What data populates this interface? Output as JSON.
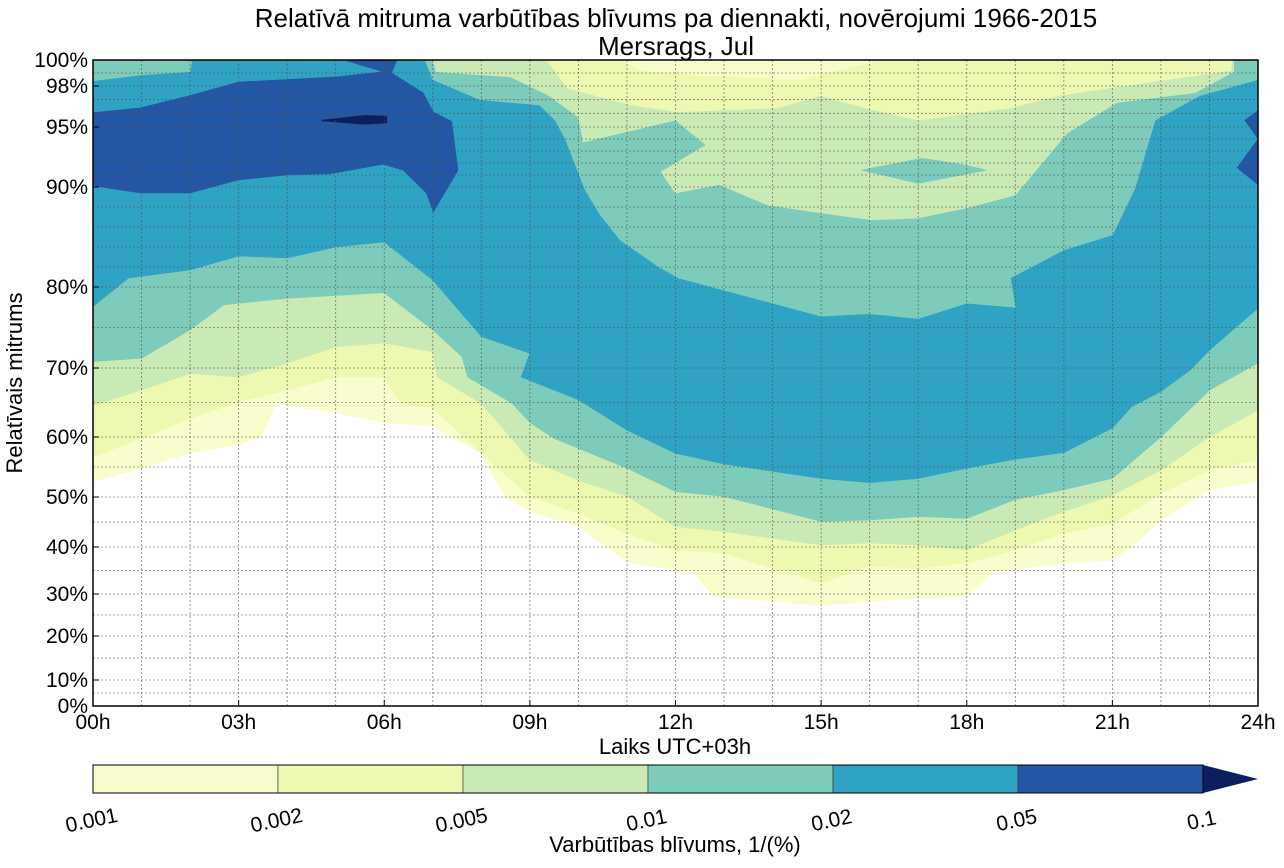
{
  "chart_data": {
    "type": "contourf",
    "title": "Relatīvā mitruma varbūtības blīvums pa diennakti, novērojumi 1966-2015",
    "subtitle": "Mersrags, Jul",
    "xlabel": "Laiks UTC+03h",
    "ylabel": "Relatīvais mitrums",
    "xlim": [
      0,
      24
    ],
    "ylim": [
      0,
      100
    ],
    "grid": true,
    "x_ticks": [
      {
        "value": 0,
        "label": "00h"
      },
      {
        "value": 3,
        "label": "03h"
      },
      {
        "value": 6,
        "label": "06h"
      },
      {
        "value": 9,
        "label": "09h"
      },
      {
        "value": 12,
        "label": "12h"
      },
      {
        "value": 15,
        "label": "15h"
      },
      {
        "value": 18,
        "label": "18h"
      },
      {
        "value": 21,
        "label": "21h"
      },
      {
        "value": 24,
        "label": "24h"
      }
    ],
    "x_minor_gridlines_every_hours": 1,
    "y_ticks": [
      {
        "value": 0,
        "label": "0%"
      },
      {
        "value": 10,
        "label": "10%"
      },
      {
        "value": 20,
        "label": "20%"
      },
      {
        "value": 30,
        "label": "30%"
      },
      {
        "value": 40,
        "label": "40%"
      },
      {
        "value": 50,
        "label": "50%"
      },
      {
        "value": 60,
        "label": "60%"
      },
      {
        "value": 70,
        "label": "70%"
      },
      {
        "value": 80,
        "label": "80%"
      },
      {
        "value": 90,
        "label": "90%"
      },
      {
        "value": 95,
        "label": "95%"
      },
      {
        "value": 98,
        "label": "98%"
      },
      {
        "value": 100,
        "label": "100%"
      }
    ],
    "y_minor_gridlines": [
      5,
      15,
      25,
      35,
      45,
      55,
      65,
      75,
      82,
      84,
      86,
      88,
      91,
      92,
      93,
      94,
      96,
      97,
      99
    ],
    "colorbar": {
      "label": "Varbūtības blīvums, 1/(%)",
      "levels": [
        0.001,
        0.002,
        0.005,
        0.01,
        0.02,
        0.05,
        0.1
      ],
      "tick_labels": [
        "0.001",
        "0.002",
        "0.005",
        "0.01",
        "0.02",
        "0.05",
        "0.1"
      ],
      "colors": [
        "#f9fdcb",
        "#edf8b1",
        "#c9eab5",
        "#7dcbba",
        "#2ea3c3",
        "#2357a6"
      ],
      "extend": "max",
      "extend_color": "#0c1f5c"
    },
    "regions": [
      {
        "level": 0.001,
        "points": [
          [
            0,
            100
          ],
          [
            0,
            52.6
          ],
          [
            1,
            54.8
          ],
          [
            2,
            57.3
          ],
          [
            3,
            58.7
          ],
          [
            3.45,
            60
          ],
          [
            3.77,
            64.9
          ],
          [
            5,
            63.5
          ],
          [
            6,
            62.1
          ],
          [
            7,
            61.5
          ],
          [
            8,
            57.3
          ],
          [
            8.47,
            50.1
          ],
          [
            9,
            47.1
          ],
          [
            10,
            44.1
          ],
          [
            11,
            36.9
          ],
          [
            12,
            35.1
          ],
          [
            12.38,
            34.4
          ],
          [
            12.79,
            29.4
          ],
          [
            15,
            27.3
          ],
          [
            17,
            29
          ],
          [
            18,
            29.4
          ],
          [
            18.55,
            34.7
          ],
          [
            20,
            36.6
          ],
          [
            21,
            37.2
          ],
          [
            21.4,
            40.1
          ],
          [
            22,
            45.4
          ],
          [
            23,
            51.2
          ],
          [
            24,
            52.6
          ],
          [
            24,
            100
          ]
        ]
      },
      {
        "level": 0.002,
        "points": [
          [
            0,
            100
          ],
          [
            0,
            56.7
          ],
          [
            1,
            59.8
          ],
          [
            2,
            62.7
          ],
          [
            3,
            65.1
          ],
          [
            4,
            66.8
          ],
          [
            5,
            68.7
          ],
          [
            6,
            68.7
          ],
          [
            6.33,
            64.9
          ],
          [
            7,
            64.2
          ],
          [
            8,
            57.3
          ],
          [
            9,
            50.1
          ],
          [
            10,
            46.7
          ],
          [
            11,
            42.7
          ],
          [
            12,
            39.4
          ],
          [
            13,
            38.7
          ],
          [
            15,
            32.3
          ],
          [
            16,
            35.9
          ],
          [
            17,
            35.5
          ],
          [
            18,
            36.6
          ],
          [
            19,
            39.4
          ],
          [
            20,
            42.7
          ],
          [
            21,
            44.7
          ],
          [
            22,
            50.6
          ],
          [
            23,
            54.5
          ],
          [
            24,
            56.2
          ],
          [
            24,
            100
          ]
        ]
      },
      {
        "level": 0.005,
        "points": [
          [
            0,
            100
          ],
          [
            0,
            64.6
          ],
          [
            1,
            66.8
          ],
          [
            2,
            69.2
          ],
          [
            3,
            68.7
          ],
          [
            4,
            70.6
          ],
          [
            5,
            72.6
          ],
          [
            6,
            73.1
          ],
          [
            7,
            72.0
          ],
          [
            7.09,
            68.7
          ],
          [
            8,
            64.9
          ],
          [
            9,
            56.2
          ],
          [
            10,
            52.8
          ],
          [
            11,
            50.1
          ],
          [
            12,
            44.1
          ],
          [
            13,
            43.1
          ],
          [
            15,
            40.4
          ],
          [
            16,
            40.8
          ],
          [
            17,
            40.4
          ],
          [
            18,
            39.4
          ],
          [
            19,
            43.4
          ],
          [
            20,
            47.1
          ],
          [
            21,
            50.3
          ],
          [
            22,
            54.5
          ],
          [
            23,
            60
          ],
          [
            24,
            63.9
          ],
          [
            24,
            100
          ]
        ]
      },
      {
        "level": 0.01,
        "points": [
          [
            0,
            100
          ],
          [
            0,
            70.8
          ],
          [
            1,
            71.2
          ],
          [
            2,
            74.7
          ],
          [
            2.7,
            77.8
          ],
          [
            4,
            78.6
          ],
          [
            6,
            79.3
          ],
          [
            7,
            74.7
          ],
          [
            7.6,
            71.4
          ],
          [
            7.72,
            68.7
          ],
          [
            8.63,
            64.9
          ],
          [
            9,
            62.1
          ],
          [
            9.49,
            59.8
          ],
          [
            11,
            54.8
          ],
          [
            12,
            50.9
          ],
          [
            13,
            50.1
          ],
          [
            15,
            45.1
          ],
          [
            16,
            45.4
          ],
          [
            17,
            46.1
          ],
          [
            18,
            45.7
          ],
          [
            19,
            49.5
          ],
          [
            20,
            51.2
          ],
          [
            21,
            53.1
          ],
          [
            22,
            60
          ],
          [
            23,
            66.8
          ],
          [
            24,
            70.6
          ],
          [
            24,
            100
          ]
        ]
      },
      {
        "level": 0.02,
        "points": [
          [
            0,
            100
          ],
          [
            0,
            77.6
          ],
          [
            0.73,
            80.9
          ],
          [
            2,
            81.7
          ],
          [
            3,
            83.1
          ],
          [
            4,
            82.9
          ],
          [
            5,
            84.0
          ],
          [
            6,
            84.5
          ],
          [
            7,
            80.7
          ],
          [
            8,
            73.9
          ],
          [
            9,
            71.8
          ],
          [
            8.82,
            68.7
          ],
          [
            10,
            65.4
          ],
          [
            11,
            61.0
          ],
          [
            12,
            57.3
          ],
          [
            13,
            55.5
          ],
          [
            15,
            53.1
          ],
          [
            16,
            52.4
          ],
          [
            17,
            53.1
          ],
          [
            18,
            54.8
          ],
          [
            19,
            56.3
          ],
          [
            20,
            57.4
          ],
          [
            21,
            61.3
          ],
          [
            21.4,
            64.4
          ],
          [
            22,
            66.6
          ],
          [
            22.6,
            69.7
          ],
          [
            23,
            72.2
          ],
          [
            24,
            77.4
          ],
          [
            24,
            100
          ]
        ]
      },
      {
        "level": 0.01,
        "points": [
          [
            6.84,
            100
          ],
          [
            7.0,
            98.5
          ],
          [
            7.97,
            97.0
          ],
          [
            9.2,
            96.6
          ],
          [
            9.52,
            95.5
          ],
          [
            9.72,
            94.1
          ],
          [
            10.14,
            89.7
          ],
          [
            10.45,
            87.2
          ],
          [
            10.86,
            84.7
          ],
          [
            11.66,
            82.0
          ],
          [
            12.06,
            80.9
          ],
          [
            13,
            79.6
          ],
          [
            14,
            78.0
          ],
          [
            15,
            76.4
          ],
          [
            16,
            76.7
          ],
          [
            17,
            76.1
          ],
          [
            18,
            78.0
          ],
          [
            19,
            77.5
          ],
          [
            18.9,
            80.9
          ],
          [
            20,
            83.7
          ],
          [
            21,
            85.2
          ],
          [
            21.46,
            89.8
          ],
          [
            21.88,
            95.5
          ],
          [
            22.8,
            97.3
          ],
          [
            23.63,
            98.1
          ],
          [
            24,
            98.5
          ],
          [
            24,
            100
          ]
        ]
      },
      {
        "level": 0.005,
        "points": [
          [
            7.0,
            100
          ],
          [
            7.07,
            99.1
          ],
          [
            8.6,
            98.7
          ],
          [
            9.4,
            97.3
          ],
          [
            10.0,
            95.7
          ],
          [
            10.1,
            93.75
          ],
          [
            12.0,
            95.5
          ],
          [
            12.63,
            93.5
          ],
          [
            11.7,
            91.25
          ],
          [
            12.0,
            89.4
          ],
          [
            12.9,
            90.2
          ],
          [
            13.9,
            88.2
          ],
          [
            15.0,
            87.4
          ],
          [
            16.05,
            86.7
          ],
          [
            17.0,
            86.9
          ],
          [
            18.0,
            87.9
          ],
          [
            19,
            89.2
          ],
          [
            20.07,
            94.5
          ],
          [
            21.1,
            96.8
          ],
          [
            22.7,
            97.5
          ],
          [
            23.5,
            99.1
          ],
          [
            23.5,
            100
          ]
        ]
      },
      {
        "level": 0.01,
        "points": [
          [
            15.83,
            91.4
          ],
          [
            17.08,
            92.4
          ],
          [
            18.0,
            91.8
          ],
          [
            18.4,
            91.4
          ],
          [
            17.0,
            90.3
          ]
        ]
      },
      {
        "level": 0.002,
        "points": [
          [
            9.35,
            100
          ],
          [
            9.77,
            97.85
          ],
          [
            11.1,
            96.6
          ],
          [
            12.05,
            96.1
          ],
          [
            14.1,
            96.4
          ],
          [
            15.0,
            97.3
          ],
          [
            15.9,
            96.4
          ],
          [
            17.0,
            95.5
          ],
          [
            18.9,
            96.4
          ],
          [
            19.9,
            97.3
          ],
          [
            21.0,
            97.9
          ],
          [
            22.35,
            98.6
          ],
          [
            23.45,
            99.2
          ],
          [
            23.45,
            100
          ]
        ]
      },
      {
        "level": 0.001,
        "points": [
          [
            10.9,
            100
          ],
          [
            11.3,
            99.2
          ],
          [
            12.6,
            98.8
          ],
          [
            14.6,
            98.5
          ],
          [
            15.3,
            99.2
          ],
          [
            16,
            99.8
          ],
          [
            16.2,
            100
          ]
        ]
      },
      {
        "level": 0.01,
        "points": [
          [
            0,
            100
          ],
          [
            0,
            98.4
          ],
          [
            1,
            98.85
          ],
          [
            2,
            99.1
          ],
          [
            2.04,
            100
          ]
        ]
      },
      {
        "level": 0.05,
        "points": [
          [
            0,
            96.05
          ],
          [
            0.97,
            96.4
          ],
          [
            2,
            97.3
          ],
          [
            3,
            98.3
          ],
          [
            4,
            98.5
          ],
          [
            5.02,
            98.7
          ],
          [
            5.98,
            99.1
          ],
          [
            5.16,
            100
          ],
          [
            6.26,
            100
          ],
          [
            6.15,
            99.0
          ],
          [
            6.8,
            97.5
          ],
          [
            7.01,
            96.1
          ],
          [
            7.39,
            95.4
          ],
          [
            7.52,
            91.4
          ],
          [
            7.01,
            87.5
          ],
          [
            6.87,
            89.4
          ],
          [
            6.39,
            91.4
          ],
          [
            5.98,
            91.9
          ],
          [
            4.88,
            91.1
          ],
          [
            4,
            91.0
          ],
          [
            3,
            90.6
          ],
          [
            2,
            89.4
          ],
          [
            0.97,
            89.4
          ],
          [
            0,
            90.1
          ]
        ]
      },
      {
        "level": 0.05,
        "points": [
          [
            24,
            96.2
          ],
          [
            23.73,
            95.5
          ],
          [
            24,
            94
          ],
          [
            23.57,
            91.6
          ],
          [
            24,
            90.2
          ]
        ]
      },
      {
        "level": 0.1,
        "points": [
          [
            4.71,
            95.5
          ],
          [
            5.6,
            95.85
          ],
          [
            6.05,
            95.8
          ],
          [
            6.05,
            95.3
          ],
          [
            5.6,
            95.2
          ],
          [
            4.71,
            95.45
          ]
        ]
      }
    ]
  }
}
